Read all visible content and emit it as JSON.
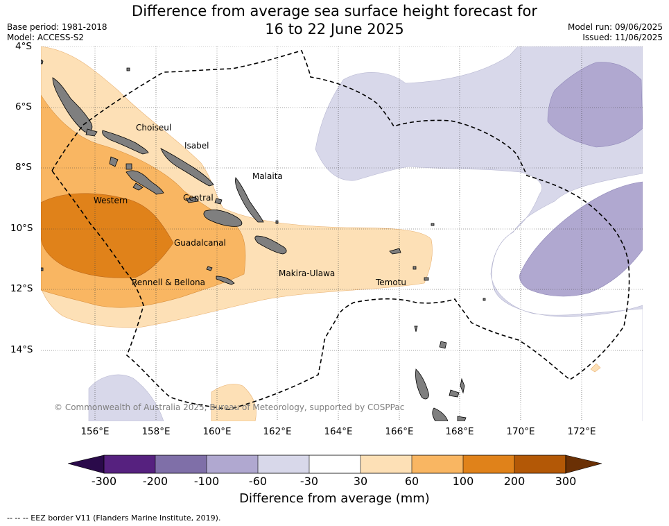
{
  "title_line1": "Difference from average sea surface height forecast for",
  "title_line2": "16 to 22 June 2025",
  "base_period": "Base period: 1981-2018",
  "model": "Model: ACCESS-S2",
  "model_run": "Model run: 09/06/2025",
  "issued": "Issued: 11/06/2025",
  "lat_labels": [
    "4°S",
    "6°S",
    "8°S",
    "10°S",
    "12°S",
    "14°S"
  ],
  "lon_labels": [
    "156°E",
    "158°E",
    "160°E",
    "162°E",
    "164°E",
    "166°E",
    "168°E",
    "170°E",
    "172°E"
  ],
  "places": {
    "choiseul": "Choiseul",
    "isabel": "Isabel",
    "malaita": "Malaita",
    "western": "Western",
    "central": "Central",
    "guadalcanal": "Guadalcanal",
    "makira": "Makira-Ulawa",
    "temotu": "Temotu",
    "rennell": "Rennell & Bellona"
  },
  "copyright": "© Commonwealth of Australia 2025, Bureau of Meteorology, supported by COSPPac",
  "colorbar": {
    "title": "Difference from average (mm)",
    "labels": [
      "-300",
      "-200",
      "-100",
      "-60",
      "-30",
      "30",
      "60",
      "100",
      "200",
      "300"
    ],
    "colors": {
      "lt_neg300": "#2a0a4a",
      "neg300_neg200": "#56217f",
      "neg200_neg100": "#7f6fa8",
      "neg100_neg60": "#b0a8d0",
      "neg60_neg30": "#d8d8ea",
      "neg30_30": "#ffffff",
      "30_60": "#fde0b6",
      "60_100": "#f9b662",
      "100_200": "#e0821a",
      "200_300": "#b35806",
      "gt_300": "#6a3005"
    }
  },
  "land_color": "#7f7f7f",
  "eez_note": "--  --  -- EEZ border V11 (Flanders Marine Institute, 2019)."
}
